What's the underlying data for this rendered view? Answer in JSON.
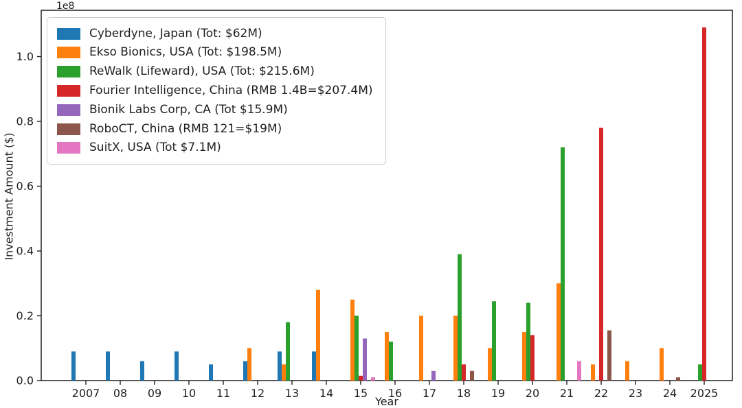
{
  "figure": {
    "background": "#ffffff",
    "offset_label": "1e8",
    "xlabel": "Year",
    "ylabel": "Investment Amount ($)"
  },
  "chart_data": {
    "type": "bar",
    "title": "",
    "xlabel": "Year",
    "ylabel": "Investment Amount ($)",
    "value_unit": "USD x 1e8 (read off y-axis with 1e8 offset label)",
    "grid": false,
    "legend_position": "upper left",
    "ylim": [
      0,
      1.14
    ],
    "yticks": [
      "0.0",
      "0.2",
      "0.4",
      "0.6",
      "0.8",
      "1.0"
    ],
    "categories": [
      "2007",
      "08",
      "09",
      "10",
      "11",
      "12",
      "13",
      "14",
      "15",
      "16",
      "17",
      "18",
      "19",
      "20",
      "21",
      "22",
      "23",
      "24",
      "2025"
    ],
    "series": [
      {
        "id": "cyberdyne",
        "name": "Cyberdyne, Japan (Tot: $62M)",
        "color": "#1f77b4",
        "values": [
          0.09,
          0.09,
          0.06,
          0.09,
          0.05,
          0.06,
          0.09,
          0.09,
          0,
          0,
          0,
          0,
          0,
          0,
          0,
          0,
          0,
          0,
          0
        ]
      },
      {
        "id": "ekso",
        "name": "Ekso Bionics, USA (Tot: $198.5M)",
        "color": "#ff7f0e",
        "values": [
          0,
          0,
          0,
          0,
          0,
          0.1,
          0.05,
          0.28,
          0.25,
          0.15,
          0.2,
          0.2,
          0.1,
          0.15,
          0.3,
          0.05,
          0.06,
          0.1,
          0
        ]
      },
      {
        "id": "rewalk",
        "name": "ReWalk (Lifeward), USA (Tot: $215.6M)",
        "color": "#2ca02c",
        "values": [
          0,
          0,
          0,
          0,
          0,
          0,
          0.18,
          0,
          0.2,
          0.12,
          0,
          0.39,
          0.245,
          0.24,
          0.72,
          0,
          0,
          0,
          0.05
        ]
      },
      {
        "id": "fourier",
        "name": "Fourier Intelligence, China (RMB 1.4B=$207.4M)",
        "color": "#d62728",
        "values": [
          0,
          0,
          0,
          0,
          0,
          0,
          0,
          0,
          0.015,
          0,
          0,
          0.05,
          0,
          0.14,
          0,
          0.78,
          0,
          0,
          1.09
        ]
      },
      {
        "id": "bionik",
        "name": "Bionik Labs Corp, CA (Tot $15.9M)",
        "color": "#9467bd",
        "values": [
          0,
          0,
          0,
          0,
          0,
          0,
          0,
          0,
          0.13,
          0,
          0.03,
          0,
          0,
          0,
          0,
          0,
          0,
          0,
          0
        ]
      },
      {
        "id": "roboct",
        "name": "RoboCT, China (RMB 121=$19M)",
        "color": "#8c564b",
        "values": [
          0,
          0,
          0,
          0,
          0,
          0,
          0,
          0,
          0,
          0,
          0,
          0.03,
          0,
          0,
          0,
          0.155,
          0,
          0.01,
          0
        ]
      },
      {
        "id": "suitx",
        "name": "SuitX, USA (Tot $7.1M)",
        "color": "#e377c2",
        "values": [
          0,
          0,
          0,
          0,
          0,
          0,
          0,
          0,
          0.01,
          0,
          0,
          0,
          0,
          0,
          0.06,
          0,
          0,
          0,
          0
        ]
      }
    ]
  }
}
